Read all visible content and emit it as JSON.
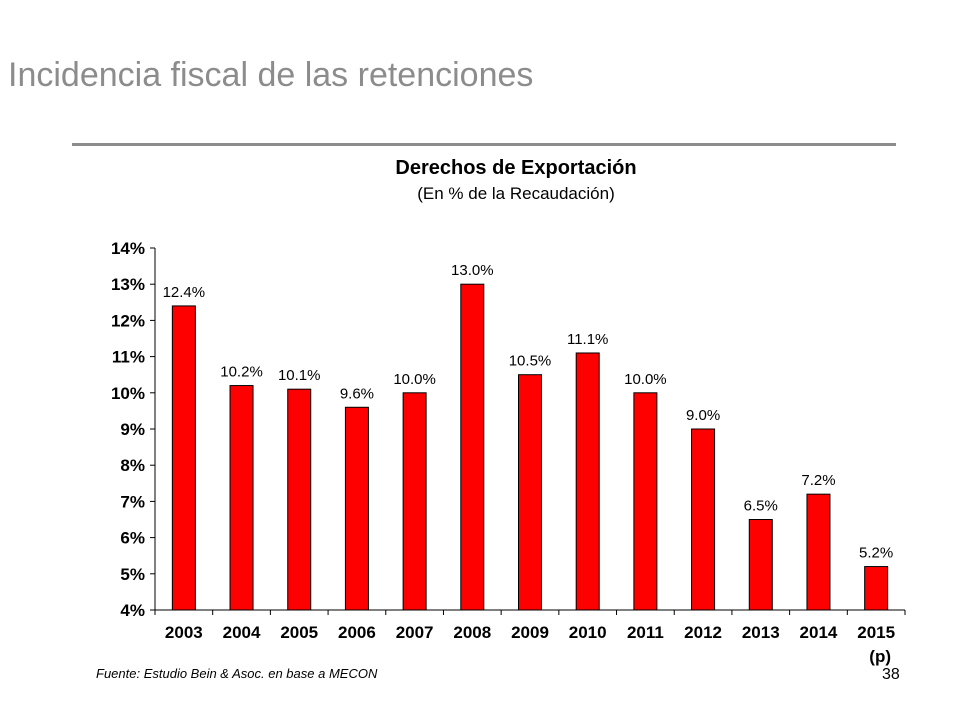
{
  "slide": {
    "title": "Incidencia fiscal de las retenciones",
    "footnote": "Fuente: Estudio Bein & Asoc. en base a MECON",
    "page_number": "38"
  },
  "chart_data": {
    "type": "bar",
    "title": "Derechos de Exportación",
    "subtitle": "(En % de la Recaudación)",
    "xlabel": "",
    "ylabel": "",
    "categories": [
      "2003",
      "2004",
      "2005",
      "2006",
      "2007",
      "2008",
      "2009",
      "2010",
      "2011",
      "2012",
      "2013",
      "2014",
      "2015"
    ],
    "category_notes": {
      "2015": "(p)"
    },
    "values": [
      12.4,
      10.2,
      10.1,
      9.6,
      10.0,
      13.0,
      10.5,
      11.1,
      10.0,
      9.0,
      6.5,
      7.2,
      5.2
    ],
    "data_labels": [
      "12.4%",
      "10.2%",
      "10.1%",
      "9.6%",
      "10.0%",
      "13.0%",
      "10.5%",
      "11.1%",
      "10.0%",
      "9.0%",
      "6.5%",
      "7.2%",
      "5.2%"
    ],
    "ylim": [
      4,
      14
    ],
    "yticks": [
      4,
      5,
      6,
      7,
      8,
      9,
      10,
      11,
      12,
      13,
      14
    ],
    "ytick_labels": [
      "4%",
      "5%",
      "6%",
      "7%",
      "8%",
      "9%",
      "10%",
      "11%",
      "12%",
      "13%",
      "14%"
    ],
    "grid": false,
    "legend": "none",
    "colors": {
      "bar": "#ff0000",
      "bar_outline": "#000000",
      "axis": "#000000"
    }
  }
}
